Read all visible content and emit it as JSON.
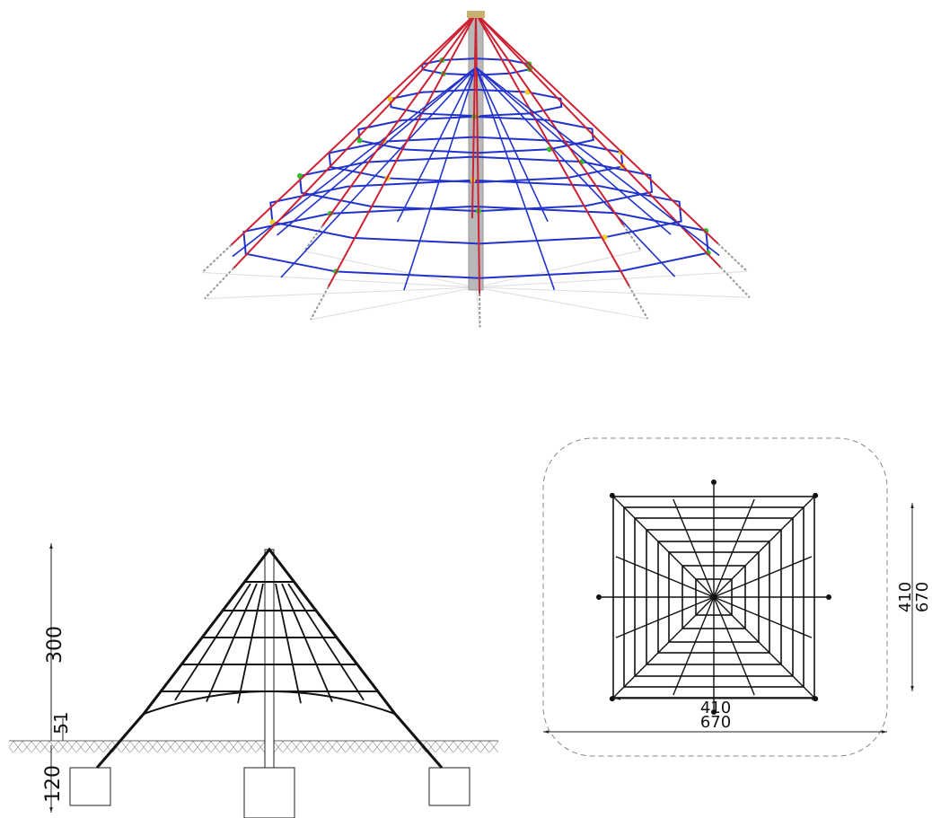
{
  "side_view": {
    "dimensions": {
      "height": "300",
      "fall": "51",
      "foundation": "120"
    }
  },
  "top_view": {
    "dimensions": {
      "width_inner": "410",
      "width_outer": "670",
      "depth_inner": "410",
      "depth_outer": "670"
    }
  }
}
